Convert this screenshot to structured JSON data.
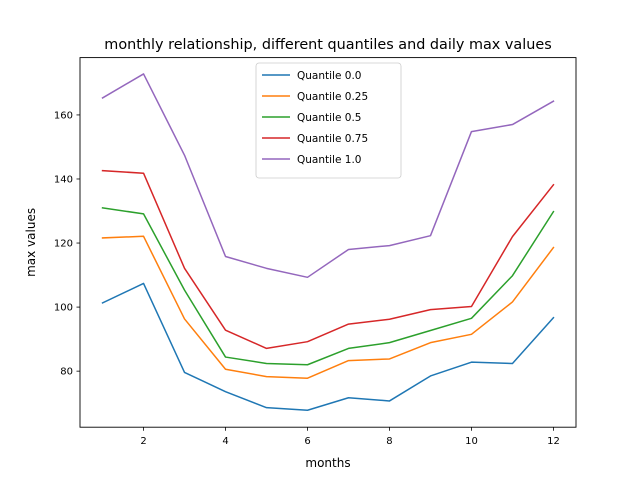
{
  "chart_data": {
    "type": "line",
    "title": "monthly relationship, different quantiles and daily max values",
    "xlabel": "months",
    "ylabel": "max values",
    "x": [
      1,
      2,
      3,
      4,
      5,
      6,
      7,
      8,
      9,
      10,
      11,
      12
    ],
    "xlim": [
      0.45,
      12.55
    ],
    "ylim": [
      62.5,
      177.9
    ],
    "xticks": [
      2,
      4,
      6,
      8,
      10,
      12
    ],
    "yticks": [
      80,
      100,
      120,
      140,
      160
    ],
    "grid": false,
    "legend_position": "upper center",
    "series": [
      {
        "name": "Quantile 0.0",
        "color": "#1f77b4",
        "values": [
          101.3,
          107.4,
          79.6,
          73.6,
          68.6,
          67.8,
          71.7,
          70.7,
          78.5,
          82.8,
          82.4,
          96.7
        ]
      },
      {
        "name": "Quantile 0.25",
        "color": "#ff7f0e",
        "values": [
          121.6,
          122.1,
          96.3,
          80.6,
          78.3,
          77.8,
          83.3,
          83.8,
          88.9,
          91.5,
          101.6,
          118.6
        ]
      },
      {
        "name": "Quantile 0.5",
        "color": "#2ca02c",
        "values": [
          131.0,
          129.1,
          105.3,
          84.4,
          82.4,
          82.0,
          87.1,
          88.9,
          92.7,
          96.5,
          109.8,
          129.8
        ]
      },
      {
        "name": "Quantile 0.75",
        "color": "#d62728",
        "values": [
          142.6,
          141.8,
          112.1,
          92.8,
          87.1,
          89.2,
          94.7,
          96.2,
          99.2,
          100.2,
          122.0,
          138.2
        ]
      },
      {
        "name": "Quantile 1.0",
        "color": "#9467bd",
        "values": [
          165.3,
          172.8,
          147.4,
          115.8,
          112.1,
          109.3,
          118.0,
          119.2,
          122.3,
          154.8,
          157.0,
          164.3
        ]
      }
    ]
  }
}
